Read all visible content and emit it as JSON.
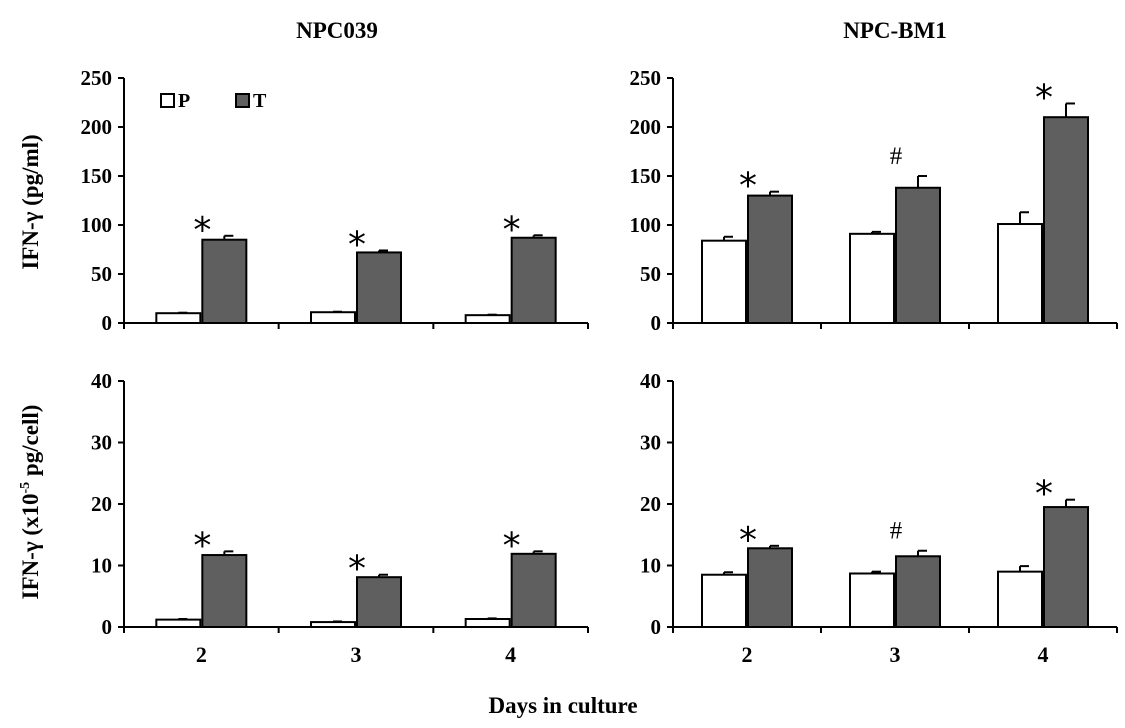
{
  "figure": {
    "xlabel": "Days in culture",
    "ylabel_top": "IFN-γ (pg/ml)",
    "ylabel_bottom_prefix": "IFN-γ (x10",
    "ylabel_bottom_exp": "-5",
    "ylabel_bottom_suffix": " pg/cell)",
    "legend": {
      "p_label": "P",
      "t_label": "T"
    },
    "colors": {
      "P": "#ffffff",
      "T": "#5f5f5f",
      "axis": "#000000"
    }
  },
  "chart_data": [
    {
      "type": "bar",
      "title": "NPC039",
      "xlabel": "",
      "ylabel": "IFN-γ (pg/ml)",
      "categories": [
        "2",
        "3",
        "4"
      ],
      "ylim": [
        0,
        250
      ],
      "yticks": [
        0,
        50,
        100,
        150,
        200,
        250
      ],
      "legend": "top-left",
      "series": [
        {
          "name": "P",
          "values": [
            10,
            11,
            8
          ],
          "errors": [
            0.5,
            0.5,
            0.5
          ]
        },
        {
          "name": "T",
          "values": [
            85,
            72,
            87
          ],
          "errors": [
            4,
            2,
            2.5
          ]
        }
      ],
      "annotations": [
        "*",
        "*",
        "*"
      ]
    },
    {
      "type": "bar",
      "title": "NPC-BM1",
      "xlabel": "",
      "ylabel": "",
      "categories": [
        "2",
        "3",
        "4"
      ],
      "ylim": [
        0,
        250
      ],
      "yticks": [
        0,
        50,
        100,
        150,
        200,
        250
      ],
      "series": [
        {
          "name": "P",
          "values": [
            84,
            91,
            101
          ],
          "errors": [
            4,
            2,
            12
          ]
        },
        {
          "name": "T",
          "values": [
            130,
            138,
            210
          ],
          "errors": [
            4,
            12,
            14
          ]
        }
      ],
      "annotations": [
        "*",
        "#",
        "*"
      ]
    },
    {
      "type": "bar",
      "title": "",
      "xlabel": "",
      "ylabel": "IFN-γ (x10-5 pg/cell)",
      "categories": [
        "2",
        "3",
        "4"
      ],
      "ylim": [
        0,
        40
      ],
      "yticks": [
        0,
        10,
        20,
        30,
        40
      ],
      "series": [
        {
          "name": "P",
          "values": [
            1.2,
            0.8,
            1.3
          ],
          "errors": [
            0.1,
            0.1,
            0.1
          ]
        },
        {
          "name": "T",
          "values": [
            11.7,
            8.1,
            11.9
          ],
          "errors": [
            0.6,
            0.4,
            0.4
          ]
        }
      ],
      "annotations": [
        "*",
        "*",
        "*"
      ]
    },
    {
      "type": "bar",
      "title": "",
      "xlabel": "",
      "ylabel": "",
      "categories": [
        "2",
        "3",
        "4"
      ],
      "ylim": [
        0,
        40
      ],
      "yticks": [
        0,
        10,
        20,
        30,
        40
      ],
      "series": [
        {
          "name": "P",
          "values": [
            8.5,
            8.7,
            9.0
          ],
          "errors": [
            0.4,
            0.3,
            0.9
          ]
        },
        {
          "name": "T",
          "values": [
            12.8,
            11.5,
            19.5
          ],
          "errors": [
            0.4,
            0.9,
            1.2
          ]
        }
      ],
      "annotations": [
        "*",
        "#",
        "*"
      ]
    }
  ]
}
